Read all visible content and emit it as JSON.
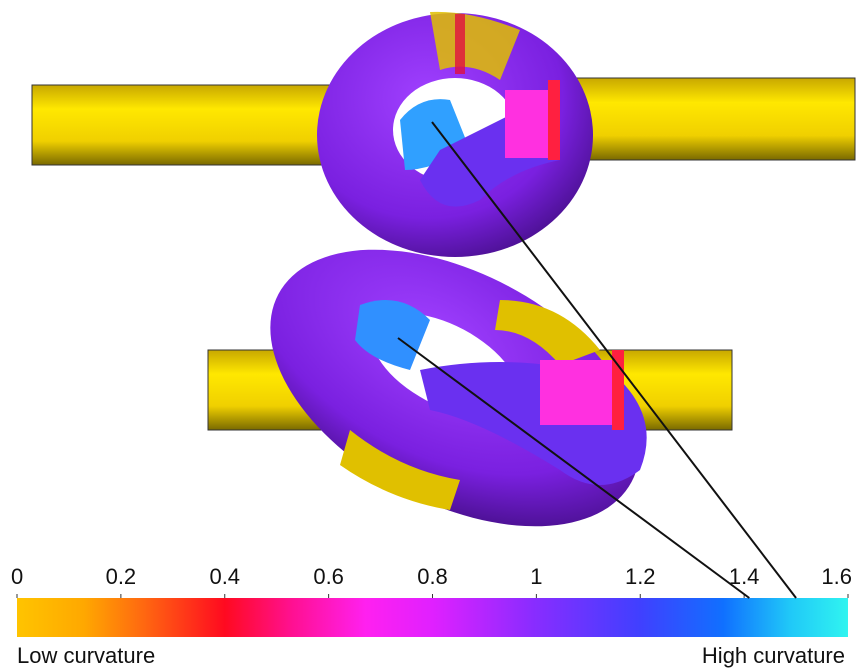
{
  "chart_data": {
    "type": "colorbar",
    "xlim": [
      0,
      1.6
    ],
    "xticks": [
      0,
      0.2,
      0.4,
      0.6,
      0.8,
      1,
      1.2,
      1.4,
      1.6
    ],
    "low_label": "Low curvature",
    "high_label": "High curvature",
    "pointers": [
      1.5,
      1.41
    ]
  }
}
